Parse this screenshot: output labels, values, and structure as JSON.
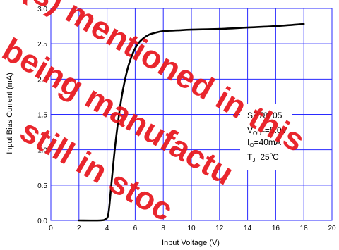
{
  "chart_data": {
    "type": "line",
    "xlabel": "Input Voltage (V)",
    "ylabel": "Input Bias Current (mA)",
    "xlim": [
      0,
      20
    ],
    "ylim": [
      0,
      3.0
    ],
    "x_ticks": [
      "0",
      "2",
      "4",
      "6",
      "8",
      "10",
      "12",
      "14",
      "16",
      "18",
      "20"
    ],
    "y_ticks": [
      "0.0",
      "0.5",
      "1.0",
      "1.5",
      "2.0",
      "2.5",
      "3.0"
    ],
    "grid": true,
    "grid_color": "#2a2aff",
    "line_color": "#000000",
    "series": [
      {
        "x": [
          2.0,
          3.5,
          3.9,
          4.1,
          4.3,
          4.6,
          5.0,
          5.4,
          5.8,
          6.2,
          6.6,
          7.0,
          7.5,
          8.0,
          9.0,
          10.0,
          12.0,
          14.0,
          16.0,
          18.0
        ],
        "y": [
          0.0,
          0.0,
          0.02,
          0.1,
          0.5,
          1.1,
          1.7,
          2.1,
          2.35,
          2.5,
          2.58,
          2.63,
          2.66,
          2.68,
          2.69,
          2.7,
          2.71,
          2.73,
          2.75,
          2.78
        ]
      }
    ],
    "annotation": {
      "device": "SP78L05",
      "vout_main": "V",
      "vout_sub": "OUT",
      "vout_val": "=5.0V",
      "io_main": "I",
      "io_sub": "O",
      "io_val": "=40mA",
      "tj_main": "T",
      "tj_sub": "J",
      "tj_val": "=25",
      "tj_deg": "o",
      "tj_unit": "C"
    }
  },
  "watermark": {
    "lines": [
      "(s) mentioned in this",
      "being manufactu",
      "still in stoc"
    ],
    "color": "#e8141c"
  }
}
